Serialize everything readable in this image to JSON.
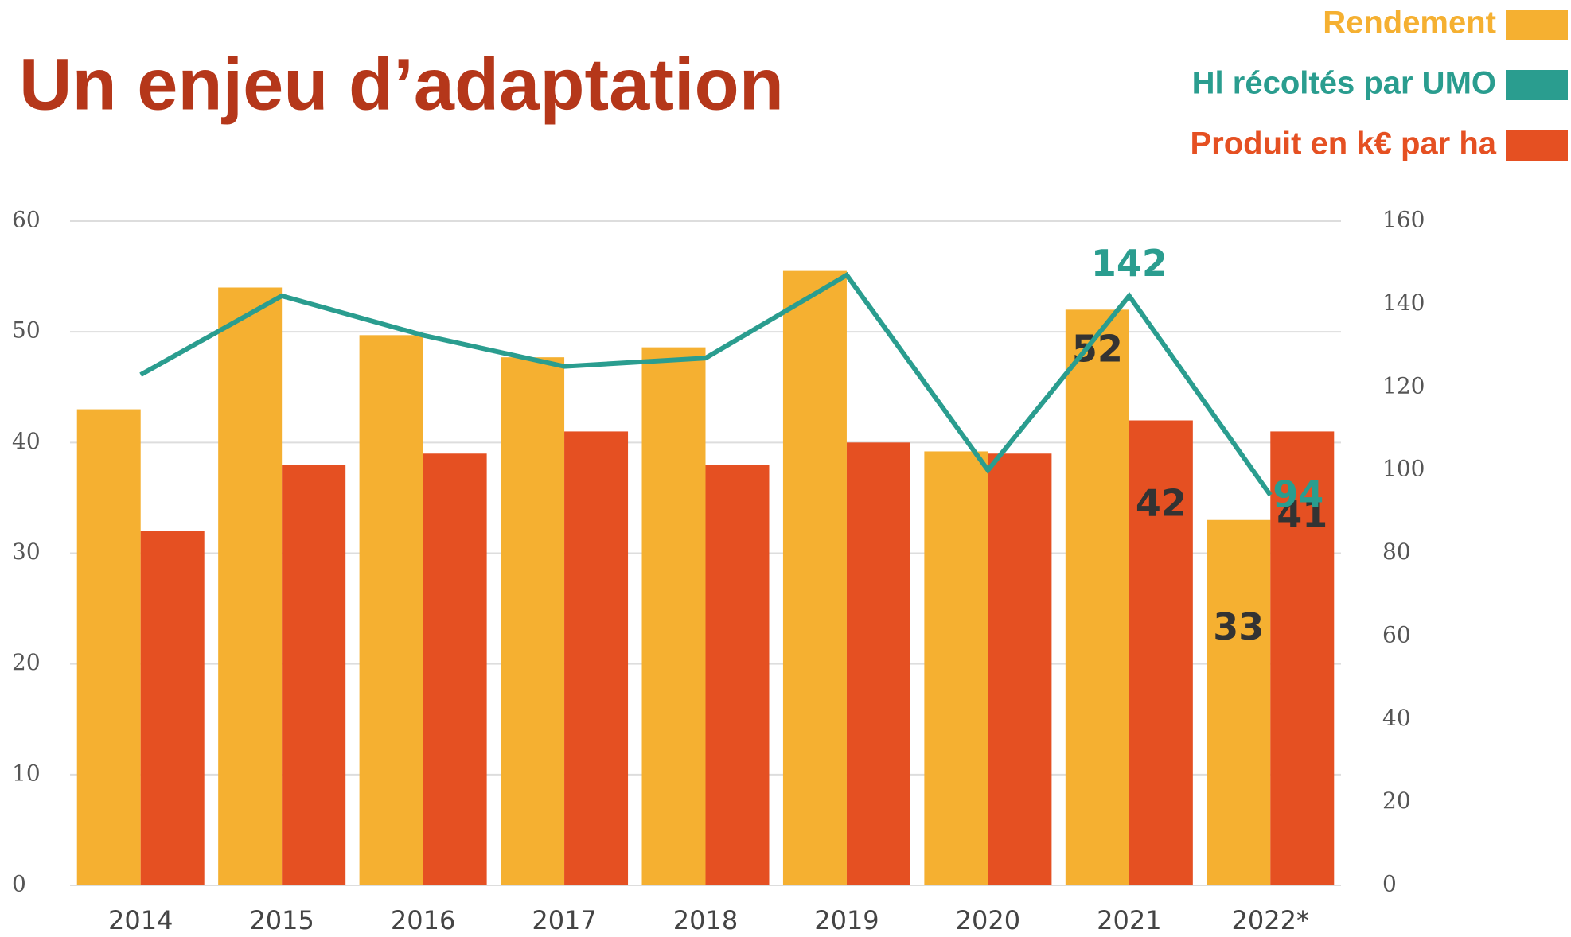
{
  "chart_data": {
    "type": "bar-line",
    "title": "Un enjeu d’adaptation",
    "categories": [
      "2014",
      "2015",
      "2016",
      "2017",
      "2018",
      "2019",
      "2020",
      "2021",
      "2022*"
    ],
    "series": [
      {
        "name": "Rendement",
        "color": "#f5b031",
        "type": "bar",
        "values": [
          43,
          54,
          49.7,
          47.7,
          48.6,
          55.5,
          39.2,
          52,
          33
        ],
        "value_labels": [
          null,
          null,
          null,
          null,
          null,
          null,
          null,
          "52",
          "33"
        ]
      },
      {
        "name": "Produit en k€ par ha",
        "color": "#e55022",
        "type": "bar",
        "values": [
          32,
          38,
          39,
          41,
          38,
          40,
          39,
          42,
          41
        ],
        "value_labels": [
          null,
          null,
          null,
          null,
          null,
          null,
          null,
          "42",
          "41"
        ]
      },
      {
        "name": "Hl récoltés par UMO",
        "color": "#2a9d8f",
        "type": "line",
        "axis": "y2",
        "values": [
          123,
          142,
          132.5,
          125,
          127,
          147,
          100,
          142,
          94
        ],
        "value_labels": [
          null,
          null,
          null,
          null,
          null,
          null,
          null,
          "142",
          "94"
        ]
      }
    ],
    "legend_order": [
      0,
      2,
      1
    ],
    "ylim": [
      0,
      60
    ],
    "yticks": [
      0,
      10,
      20,
      30,
      40,
      50,
      60
    ],
    "y2lim": [
      0,
      160
    ],
    "y2ticks": [
      0,
      20,
      40,
      60,
      80,
      100,
      120,
      140,
      160
    ],
    "grid": true
  }
}
